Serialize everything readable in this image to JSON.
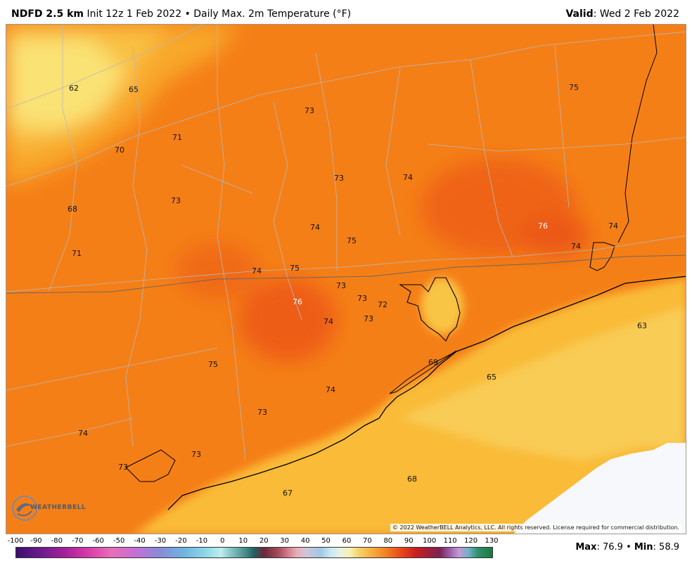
{
  "header": {
    "product": "NDFD 2.5 km",
    "init": "Init 12z 1 Feb 2022",
    "separator": "•",
    "field": "Daily Max. 2m Temperature (°F)",
    "valid_label": "Valid",
    "valid_value": ": Wed 2 Feb 2022"
  },
  "map": {
    "labels": [
      {
        "text": "62",
        "color": "dark"
      },
      {
        "text": "65",
        "color": "dark"
      },
      {
        "text": "73",
        "color": "dark"
      },
      {
        "text": "75",
        "color": "dark"
      },
      {
        "text": "71",
        "color": "dark"
      },
      {
        "text": "70",
        "color": "dark"
      },
      {
        "text": "73",
        "color": "dark"
      },
      {
        "text": "74",
        "color": "dark"
      },
      {
        "text": "68",
        "color": "dark"
      },
      {
        "text": "73",
        "color": "dark"
      },
      {
        "text": "76",
        "color": "white"
      },
      {
        "text": "74",
        "color": "dark"
      },
      {
        "text": "74",
        "color": "dark"
      },
      {
        "text": "75",
        "color": "dark"
      },
      {
        "text": "74",
        "color": "dark"
      },
      {
        "text": "71",
        "color": "dark"
      },
      {
        "text": "74",
        "color": "dark"
      },
      {
        "text": "75",
        "color": "dark"
      },
      {
        "text": "73",
        "color": "dark"
      },
      {
        "text": "73",
        "color": "dark"
      },
      {
        "text": "76",
        "color": "white"
      },
      {
        "text": "72",
        "color": "dark"
      },
      {
        "text": "74",
        "color": "dark"
      },
      {
        "text": "73",
        "color": "dark"
      },
      {
        "text": "63",
        "color": "dark"
      },
      {
        "text": "75",
        "color": "dark"
      },
      {
        "text": "69",
        "color": "dark"
      },
      {
        "text": "65",
        "color": "dark"
      },
      {
        "text": "74",
        "color": "dark"
      },
      {
        "text": "73",
        "color": "dark"
      },
      {
        "text": "74",
        "color": "dark"
      },
      {
        "text": "73",
        "color": "dark"
      },
      {
        "text": "73",
        "color": "dark"
      },
      {
        "text": "68",
        "color": "dark"
      },
      {
        "text": "67",
        "color": "dark"
      }
    ],
    "copyright": "© 2022 WeatherBELL Analytics, LLC. All rights reserved. License required for commercial distribution.",
    "logo_text": "WEATHERBELL"
  },
  "colorbar": {
    "ticks": [
      "-100",
      "-90",
      "-80",
      "-70",
      "-60",
      "-50",
      "-40",
      "-30",
      "-20",
      "-10",
      "0",
      "10",
      "20",
      "30",
      "40",
      "50",
      "60",
      "70",
      "80",
      "90",
      "100",
      "110",
      "120",
      "130"
    ]
  },
  "stats": {
    "max_label": "Max",
    "max_value": ": 76.9",
    "separator": "•",
    "min_label": "Min",
    "min_value": ": 58.9"
  }
}
